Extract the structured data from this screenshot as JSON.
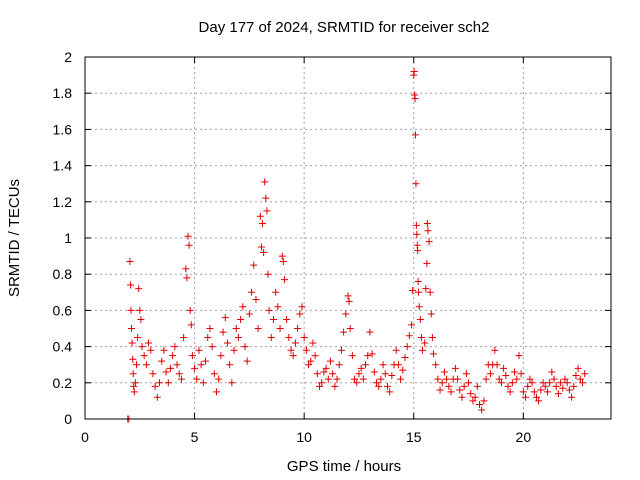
{
  "chart_data": {
    "type": "scatter",
    "title": "Day 177 of 2024, SRMTID for receiver sch2",
    "xlabel": "GPS time / hours",
    "ylabel": "SRMTID / TECUs",
    "xlim": [
      0,
      24
    ],
    "ylim": [
      0,
      2
    ],
    "xticks": [
      0,
      5,
      10,
      15,
      20
    ],
    "xtick_labels": [
      "0",
      "5",
      "10",
      "15",
      "20"
    ],
    "yticks": [
      0,
      0.2,
      0.4,
      0.6,
      0.8,
      1,
      1.2,
      1.4,
      1.6,
      1.8,
      2
    ],
    "ytick_labels": [
      "0",
      "0.2",
      "0.4",
      "0.6",
      "0.8",
      "1",
      "1.2",
      "1.4",
      "1.6",
      "1.8",
      "2"
    ],
    "grid": true,
    "marker": "+",
    "color": "#e00000",
    "series": [
      {
        "name": "sch2",
        "points": [
          [
            1.95,
            0.0
          ],
          [
            2.0,
            0.0
          ],
          [
            2.05,
            0.87
          ],
          [
            2.08,
            0.74
          ],
          [
            2.1,
            0.6
          ],
          [
            2.12,
            0.5
          ],
          [
            2.15,
            0.42
          ],
          [
            2.18,
            0.33
          ],
          [
            2.2,
            0.25
          ],
          [
            2.22,
            0.18
          ],
          [
            2.25,
            0.15
          ],
          [
            2.3,
            0.2
          ],
          [
            2.35,
            0.3
          ],
          [
            2.4,
            0.45
          ],
          [
            2.45,
            0.72
          ],
          [
            2.5,
            0.6
          ],
          [
            2.55,
            0.55
          ],
          [
            2.6,
            0.4
          ],
          [
            2.7,
            0.35
          ],
          [
            2.8,
            0.3
          ],
          [
            2.9,
            0.42
          ],
          [
            3.0,
            0.38
          ],
          [
            3.1,
            0.25
          ],
          [
            3.2,
            0.18
          ],
          [
            3.3,
            0.12
          ],
          [
            3.4,
            0.2
          ],
          [
            3.5,
            0.32
          ],
          [
            3.6,
            0.38
          ],
          [
            3.7,
            0.26
          ],
          [
            3.8,
            0.2
          ],
          [
            3.9,
            0.28
          ],
          [
            4.0,
            0.35
          ],
          [
            4.1,
            0.4
          ],
          [
            4.2,
            0.3
          ],
          [
            4.3,
            0.25
          ],
          [
            4.4,
            0.22
          ],
          [
            4.5,
            0.45
          ],
          [
            4.6,
            0.83
          ],
          [
            4.65,
            0.78
          ],
          [
            4.7,
            1.01
          ],
          [
            4.75,
            0.96
          ],
          [
            4.8,
            0.6
          ],
          [
            4.85,
            0.52
          ],
          [
            4.9,
            0.35
          ],
          [
            5.0,
            0.28
          ],
          [
            5.1,
            0.22
          ],
          [
            5.2,
            0.38
          ],
          [
            5.3,
            0.3
          ],
          [
            5.4,
            0.2
          ],
          [
            5.5,
            0.32
          ],
          [
            5.6,
            0.45
          ],
          [
            5.7,
            0.5
          ],
          [
            5.8,
            0.4
          ],
          [
            5.9,
            0.25
          ],
          [
            6.0,
            0.15
          ],
          [
            6.1,
            0.22
          ],
          [
            6.2,
            0.35
          ],
          [
            6.3,
            0.48
          ],
          [
            6.4,
            0.56
          ],
          [
            6.5,
            0.42
          ],
          [
            6.6,
            0.3
          ],
          [
            6.7,
            0.2
          ],
          [
            6.8,
            0.38
          ],
          [
            6.9,
            0.5
          ],
          [
            7.0,
            0.45
          ],
          [
            7.1,
            0.55
          ],
          [
            7.2,
            0.62
          ],
          [
            7.3,
            0.4
          ],
          [
            7.4,
            0.32
          ],
          [
            7.5,
            0.58
          ],
          [
            7.6,
            0.7
          ],
          [
            7.7,
            0.85
          ],
          [
            7.8,
            0.66
          ],
          [
            7.9,
            0.5
          ],
          [
            8.0,
            1.12
          ],
          [
            8.05,
            0.95
          ],
          [
            8.1,
            1.08
          ],
          [
            8.15,
            0.92
          ],
          [
            8.2,
            1.31
          ],
          [
            8.25,
            1.22
          ],
          [
            8.3,
            1.15
          ],
          [
            8.35,
            0.8
          ],
          [
            8.4,
            0.6
          ],
          [
            8.5,
            0.45
          ],
          [
            8.6,
            0.55
          ],
          [
            8.7,
            0.7
          ],
          [
            8.8,
            0.62
          ],
          [
            8.9,
            0.5
          ],
          [
            9.0,
            0.9
          ],
          [
            9.05,
            0.87
          ],
          [
            9.1,
            0.77
          ],
          [
            9.2,
            0.55
          ],
          [
            9.3,
            0.45
          ],
          [
            9.4,
            0.38
          ],
          [
            9.5,
            0.35
          ],
          [
            9.6,
            0.42
          ],
          [
            9.7,
            0.5
          ],
          [
            9.8,
            0.58
          ],
          [
            9.9,
            0.62
          ],
          [
            10.0,
            0.45
          ],
          [
            10.1,
            0.38
          ],
          [
            10.2,
            0.3
          ],
          [
            10.3,
            0.32
          ],
          [
            10.4,
            0.42
          ],
          [
            10.5,
            0.35
          ],
          [
            10.6,
            0.25
          ],
          [
            10.7,
            0.18
          ],
          [
            10.8,
            0.2
          ],
          [
            10.9,
            0.26
          ],
          [
            11.0,
            0.28
          ],
          [
            11.1,
            0.22
          ],
          [
            11.2,
            0.32
          ],
          [
            11.3,
            0.25
          ],
          [
            11.4,
            0.18
          ],
          [
            11.5,
            0.22
          ],
          [
            11.6,
            0.3
          ],
          [
            11.7,
            0.38
          ],
          [
            11.8,
            0.48
          ],
          [
            11.9,
            0.58
          ],
          [
            12.0,
            0.68
          ],
          [
            12.05,
            0.65
          ],
          [
            12.1,
            0.5
          ],
          [
            12.2,
            0.35
          ],
          [
            12.3,
            0.22
          ],
          [
            12.4,
            0.2
          ],
          [
            12.5,
            0.25
          ],
          [
            12.6,
            0.28
          ],
          [
            12.7,
            0.22
          ],
          [
            12.8,
            0.3
          ],
          [
            12.9,
            0.35
          ],
          [
            13.0,
            0.48
          ],
          [
            13.1,
            0.36
          ],
          [
            13.2,
            0.26
          ],
          [
            13.3,
            0.2
          ],
          [
            13.4,
            0.18
          ],
          [
            13.5,
            0.22
          ],
          [
            13.6,
            0.3
          ],
          [
            13.7,
            0.25
          ],
          [
            13.8,
            0.18
          ],
          [
            13.9,
            0.15
          ],
          [
            14.0,
            0.24
          ],
          [
            14.1,
            0.3
          ],
          [
            14.2,
            0.38
          ],
          [
            14.3,
            0.3
          ],
          [
            14.4,
            0.22
          ],
          [
            14.5,
            0.27
          ],
          [
            14.6,
            0.34
          ],
          [
            14.7,
            0.4
          ],
          [
            14.8,
            0.46
          ],
          [
            14.9,
            0.52
          ],
          [
            14.95,
            0.71
          ],
          [
            15.0,
            1.9
          ],
          [
            15.02,
            1.92
          ],
          [
            15.04,
            1.79
          ],
          [
            15.06,
            1.77
          ],
          [
            15.08,
            1.57
          ],
          [
            15.1,
            1.3
          ],
          [
            15.12,
            1.07
          ],
          [
            15.14,
            1.02
          ],
          [
            15.16,
            0.96
          ],
          [
            15.18,
            0.93
          ],
          [
            15.2,
            0.76
          ],
          [
            15.22,
            0.7
          ],
          [
            15.25,
            0.62
          ],
          [
            15.3,
            0.55
          ],
          [
            15.35,
            0.45
          ],
          [
            15.4,
            0.38
          ],
          [
            15.5,
            0.42
          ],
          [
            15.55,
            0.72
          ],
          [
            15.6,
            0.86
          ],
          [
            15.62,
            1.08
          ],
          [
            15.65,
            1.04
          ],
          [
            15.7,
            0.98
          ],
          [
            15.75,
            0.7
          ],
          [
            15.8,
            0.58
          ],
          [
            15.85,
            0.45
          ],
          [
            15.9,
            0.36
          ],
          [
            16.0,
            0.3
          ],
          [
            16.1,
            0.22
          ],
          [
            16.2,
            0.16
          ],
          [
            16.3,
            0.2
          ],
          [
            16.4,
            0.26
          ],
          [
            16.5,
            0.22
          ],
          [
            16.6,
            0.18
          ],
          [
            16.7,
            0.15
          ],
          [
            16.8,
            0.22
          ],
          [
            16.9,
            0.28
          ],
          [
            17.0,
            0.22
          ],
          [
            17.1,
            0.16
          ],
          [
            17.2,
            0.12
          ],
          [
            17.3,
            0.18
          ],
          [
            17.4,
            0.25
          ],
          [
            17.5,
            0.2
          ],
          [
            17.6,
            0.14
          ],
          [
            17.7,
            0.1
          ],
          [
            17.8,
            0.12
          ],
          [
            17.9,
            0.18
          ],
          [
            18.0,
            0.08
          ],
          [
            18.1,
            0.05
          ],
          [
            18.2,
            0.1
          ],
          [
            18.3,
            0.22
          ],
          [
            18.4,
            0.3
          ],
          [
            18.5,
            0.25
          ],
          [
            18.6,
            0.3
          ],
          [
            18.7,
            0.38
          ],
          [
            18.8,
            0.3
          ],
          [
            18.9,
            0.22
          ],
          [
            19.0,
            0.2
          ],
          [
            19.1,
            0.28
          ],
          [
            19.2,
            0.24
          ],
          [
            19.3,
            0.18
          ],
          [
            19.4,
            0.15
          ],
          [
            19.5,
            0.2
          ],
          [
            19.6,
            0.26
          ],
          [
            19.7,
            0.22
          ],
          [
            19.8,
            0.35
          ],
          [
            19.9,
            0.25
          ],
          [
            20.0,
            0.15
          ],
          [
            20.1,
            0.12
          ],
          [
            20.2,
            0.18
          ],
          [
            20.3,
            0.22
          ],
          [
            20.4,
            0.2
          ],
          [
            20.5,
            0.15
          ],
          [
            20.6,
            0.12
          ],
          [
            20.7,
            0.1
          ],
          [
            20.8,
            0.16
          ],
          [
            20.9,
            0.2
          ],
          [
            21.0,
            0.18
          ],
          [
            21.1,
            0.15
          ],
          [
            21.2,
            0.2
          ],
          [
            21.3,
            0.26
          ],
          [
            21.4,
            0.22
          ],
          [
            21.5,
            0.18
          ],
          [
            21.6,
            0.14
          ],
          [
            21.7,
            0.2
          ],
          [
            21.8,
            0.17
          ],
          [
            21.9,
            0.22
          ],
          [
            22.0,
            0.2
          ],
          [
            22.1,
            0.16
          ],
          [
            22.2,
            0.12
          ],
          [
            22.3,
            0.18
          ],
          [
            22.4,
            0.24
          ],
          [
            22.5,
            0.28
          ],
          [
            22.6,
            0.22
          ],
          [
            22.7,
            0.2
          ],
          [
            22.8,
            0.25
          ]
        ]
      }
    ]
  }
}
